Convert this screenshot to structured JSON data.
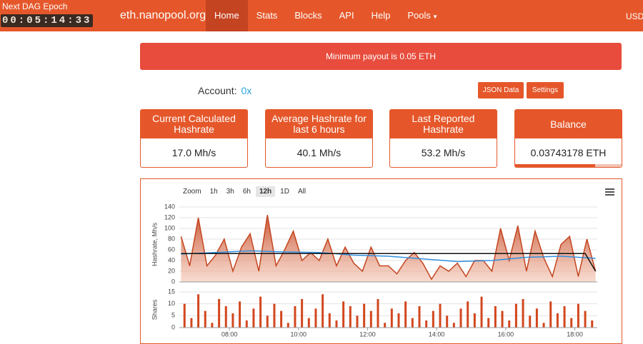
{
  "header": {
    "dag_label": "Next DAG Epoch",
    "timer": "00:05:14:33",
    "brand": "eth.nanopool.org",
    "nav": [
      "Home",
      "Stats",
      "Blocks",
      "API",
      "Help",
      "Pools"
    ],
    "active_index": 0,
    "currency": "USD"
  },
  "alert": "Minimum payout is 0.05 ETH",
  "account": {
    "label": "Account:",
    "value": "0x"
  },
  "buttons": [
    "JSON Data",
    "Settings"
  ],
  "cards": [
    {
      "title": "Current Calculated Hashrate",
      "value": "17.0 Mh/s"
    },
    {
      "title": "Average Hashrate for last 6 hours",
      "value": "40.1 Mh/s"
    },
    {
      "title": "Last Reported Hashrate",
      "value": "53.2 Mh/s"
    },
    {
      "title": "Balance",
      "value": "0.03743178 ETH"
    }
  ],
  "zoom": {
    "label": "Zoom",
    "options": [
      "1h",
      "3h",
      "6h",
      "12h",
      "1D",
      "All"
    ],
    "selected_index": 3
  },
  "chart_data": [
    {
      "type": "area",
      "ylabel": "Hashrate, Mh/s",
      "xlim": [
        6.55,
        18.65
      ],
      "ylim": [
        0,
        140
      ],
      "yticks": [
        0,
        20,
        40,
        60,
        80,
        100,
        120,
        140
      ],
      "grid": true,
      "series": [
        {
          "style": "area",
          "color": "#c4451f",
          "x": [
            6.6,
            6.85,
            7.1,
            7.35,
            7.6,
            7.85,
            8.1,
            8.35,
            8.6,
            8.85,
            9.1,
            9.35,
            9.6,
            9.85,
            10.1,
            10.35,
            10.6,
            10.85,
            11.1,
            11.35,
            11.6,
            11.85,
            12.1,
            12.35,
            12.6,
            12.85,
            13.1,
            13.35,
            13.6,
            13.85,
            14.1,
            14.35,
            14.6,
            14.85,
            15.1,
            15.35,
            15.6,
            15.85,
            16.1,
            16.35,
            16.6,
            16.85,
            17.1,
            17.35,
            17.6,
            17.85,
            18.1,
            18.35,
            18.6
          ],
          "values": [
            85,
            30,
            120,
            30,
            50,
            80,
            20,
            65,
            90,
            20,
            125,
            30,
            60,
            95,
            40,
            55,
            40,
            80,
            30,
            65,
            35,
            20,
            65,
            30,
            30,
            15,
            40,
            55,
            35,
            5,
            30,
            20,
            35,
            10,
            40,
            40,
            20,
            100,
            40,
            105,
            20,
            95,
            45,
            10,
            70,
            85,
            10,
            80,
            20
          ]
        },
        {
          "style": "line",
          "color": "#2f8fe0",
          "x": [
            6.6,
            7.6,
            8.6,
            9.6,
            10.6,
            11.6,
            12.6,
            13.6,
            14.6,
            15.6,
            16.6,
            17.6,
            18.6
          ],
          "values": [
            52,
            55,
            58,
            56,
            55,
            50,
            48,
            43,
            38,
            40,
            46,
            48,
            44
          ]
        },
        {
          "style": "line",
          "color": "#111111",
          "x": [
            6.6,
            18.3,
            18.6
          ],
          "values": [
            53,
            53,
            20
          ]
        }
      ]
    },
    {
      "type": "bar",
      "ylabel": "Shares",
      "xlim": [
        6.55,
        18.65
      ],
      "ylim": [
        0,
        15
      ],
      "yticks": [
        0,
        5,
        10,
        15
      ],
      "grid": true,
      "color": "#d2471e",
      "xticks": [
        {
          "value": 8,
          "label": "08:00"
        },
        {
          "value": 10,
          "label": "10:00"
        },
        {
          "value": 12,
          "label": "12:00"
        },
        {
          "value": 14,
          "label": "14:00"
        },
        {
          "value": 16,
          "label": "16:00"
        },
        {
          "value": 18,
          "label": "18:00"
        }
      ],
      "x": [
        6.7,
        6.9,
        7.1,
        7.3,
        7.5,
        7.7,
        7.9,
        8.1,
        8.3,
        8.5,
        8.7,
        8.9,
        9.1,
        9.3,
        9.5,
        9.7,
        9.9,
        10.1,
        10.3,
        10.5,
        10.7,
        10.9,
        11.1,
        11.3,
        11.5,
        11.7,
        11.9,
        12.1,
        12.3,
        12.5,
        12.7,
        12.9,
        13.1,
        13.3,
        13.5,
        13.7,
        13.9,
        14.1,
        14.3,
        14.5,
        14.7,
        14.9,
        15.1,
        15.3,
        15.5,
        15.7,
        15.9,
        16.1,
        16.3,
        16.5,
        16.7,
        16.9,
        17.1,
        17.3,
        17.5,
        17.7,
        17.9,
        18.1,
        18.3,
        18.5
      ],
      "values": [
        10,
        4,
        14,
        7,
        2,
        12,
        9,
        6,
        11,
        3,
        8,
        13,
        5,
        10,
        7,
        2,
        9,
        12,
        4,
        8,
        14,
        6,
        3,
        11,
        9,
        5,
        10,
        7,
        12,
        2,
        8,
        6,
        11,
        4,
        9,
        3,
        7,
        10,
        5,
        2,
        8,
        11,
        6,
        13,
        4,
        9,
        7,
        3,
        10,
        12,
        5,
        8,
        2,
        11,
        6,
        9,
        4,
        10,
        7,
        3
      ]
    }
  ]
}
